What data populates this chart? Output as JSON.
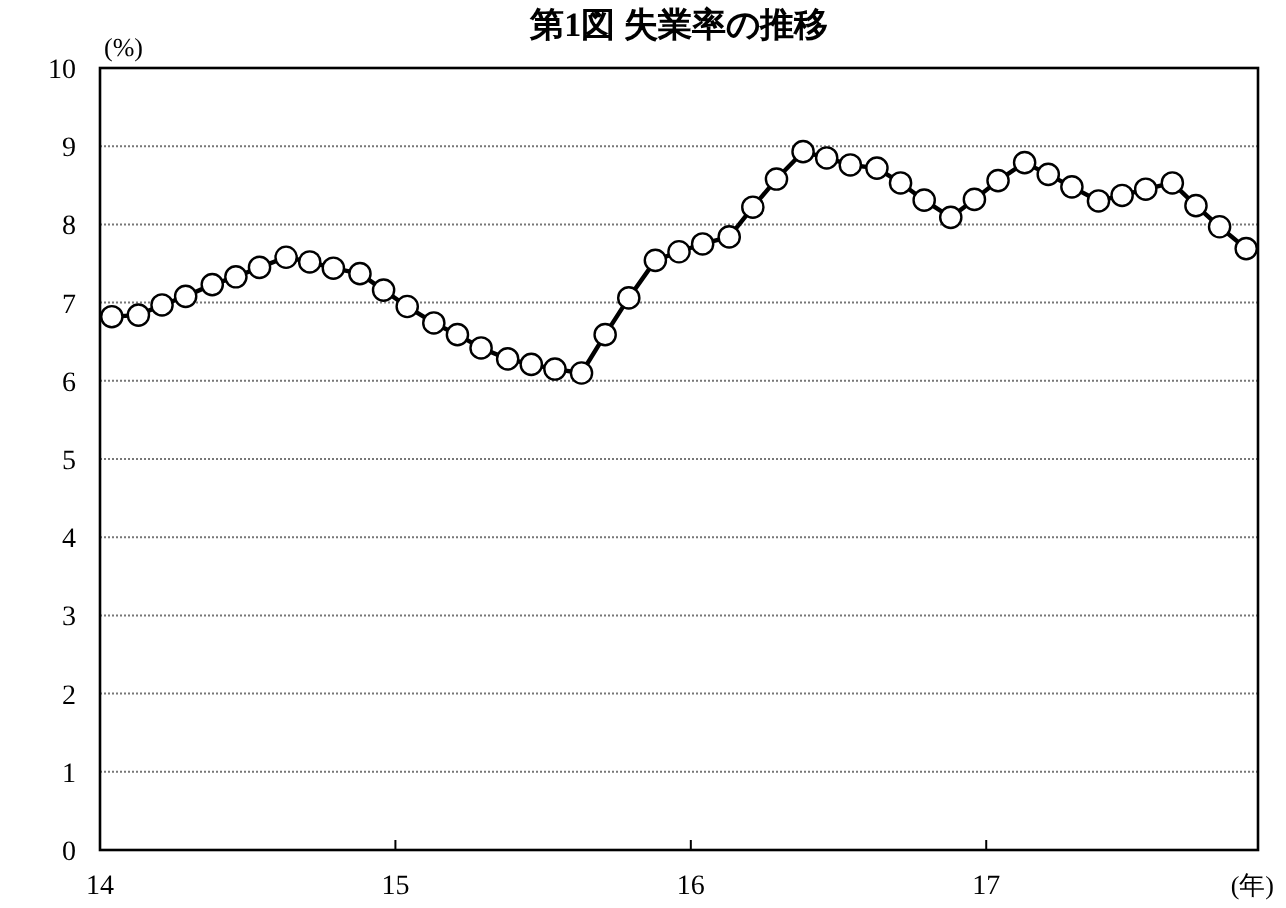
{
  "chart_data": {
    "type": "line",
    "title": "第1図 失業率の推移",
    "xlabel": "(年)",
    "ylabel": "(%)",
    "x": [
      14.04,
      14.13,
      14.21,
      14.29,
      14.38,
      14.46,
      14.54,
      14.63,
      14.71,
      14.79,
      14.88,
      14.96,
      15.04,
      15.13,
      15.21,
      15.29,
      15.38,
      15.46,
      15.54,
      15.63,
      15.71,
      15.79,
      15.88,
      15.96,
      16.04,
      16.13,
      16.21,
      16.29,
      16.38,
      16.46,
      16.54,
      16.63,
      16.71,
      16.79,
      16.88,
      16.96,
      17.04,
      17.13,
      17.21,
      17.29,
      17.38,
      17.46,
      17.54,
      17.63,
      17.71,
      17.79,
      17.88
    ],
    "series": [
      {
        "color": "#000000",
        "values": [
          6.82,
          6.84,
          6.97,
          7.08,
          7.23,
          7.33,
          7.45,
          7.58,
          7.52,
          7.44,
          7.37,
          7.16,
          6.95,
          6.74,
          6.59,
          6.42,
          6.28,
          6.21,
          6.15,
          6.1,
          6.59,
          7.06,
          7.54,
          7.65,
          7.75,
          7.84,
          8.22,
          8.58,
          8.93,
          8.85,
          8.76,
          8.72,
          8.53,
          8.31,
          8.09,
          8.32,
          8.56,
          8.79,
          8.64,
          8.48,
          8.3,
          8.37,
          8.45,
          8.53,
          8.24,
          7.97,
          7.69
        ]
      }
    ],
    "xlim": [
      14,
      17.92
    ],
    "xticks": [
      14,
      15,
      16,
      17
    ],
    "ylim": [
      0,
      10
    ],
    "yticks": [
      0,
      1,
      2,
      3,
      4,
      5,
      6,
      7,
      8,
      9,
      10
    ],
    "grid": "y",
    "marker": "circle",
    "line_style": "solid"
  }
}
